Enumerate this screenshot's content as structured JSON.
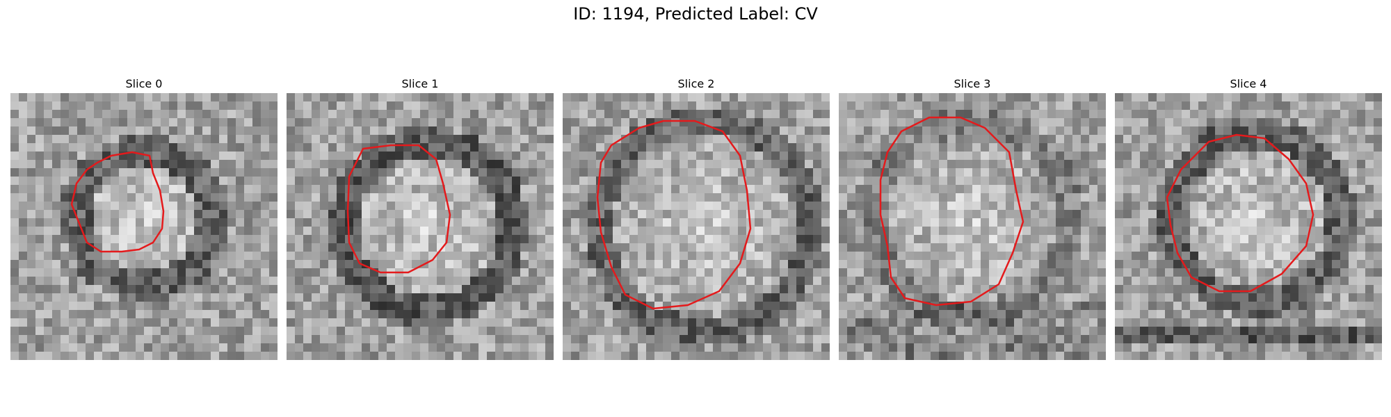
{
  "figure": {
    "title": "ID: 1194, Predicted Label: CV"
  },
  "panels": [
    {
      "label": "Slice 0"
    },
    {
      "label": "Slice 1"
    },
    {
      "label": "Slice 2"
    },
    {
      "label": "Slice 3"
    },
    {
      "label": "Slice 4"
    }
  ],
  "colors": {
    "contour": "#e41a1c",
    "background": "#ffffff"
  }
}
